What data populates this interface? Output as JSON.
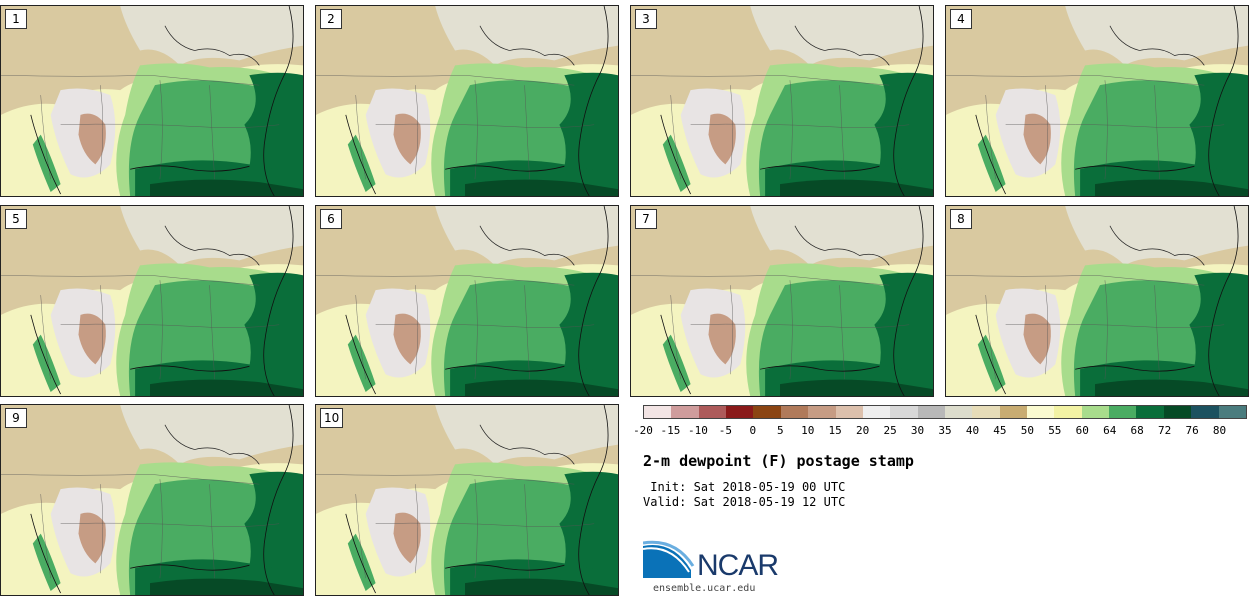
{
  "panels": [
    {
      "label": "1"
    },
    {
      "label": "2"
    },
    {
      "label": "3"
    },
    {
      "label": "4"
    },
    {
      "label": "5"
    },
    {
      "label": "6"
    },
    {
      "label": "7"
    },
    {
      "label": "8"
    },
    {
      "label": "9"
    },
    {
      "label": "10"
    }
  ],
  "colorbar": {
    "colors": [
      "#f2e4e4",
      "#cf9c9c",
      "#ad5a5a",
      "#8a1a1a",
      "#8b4513",
      "#b07a5a",
      "#c69c84",
      "#dcc0ac",
      "#eeeeee",
      "#d8d8d8",
      "#b8b8b8",
      "#dcdccc",
      "#e6dcb8",
      "#c8ac72",
      "#fafad0",
      "#f2f2a4",
      "#a8dc8c",
      "#4aac62",
      "#0a6e3a",
      "#064a26",
      "#1c5260",
      "#4a7c7e"
    ],
    "ticks": [
      "-20",
      "-15",
      "-10",
      "-5",
      "0",
      "5",
      "10",
      "15",
      "20",
      "25",
      "30",
      "35",
      "40",
      "45",
      "50",
      "55",
      "60",
      "64",
      "68",
      "72",
      "76",
      "80"
    ]
  },
  "title": "2-m dewpoint (F) postage stamp",
  "init": " Init: Sat 2018-05-19 00 UTC",
  "valid": "Valid: Sat 2018-05-19 12 UTC",
  "logo": {
    "text": "NCAR",
    "url": "ensemble.ucar.edu"
  }
}
